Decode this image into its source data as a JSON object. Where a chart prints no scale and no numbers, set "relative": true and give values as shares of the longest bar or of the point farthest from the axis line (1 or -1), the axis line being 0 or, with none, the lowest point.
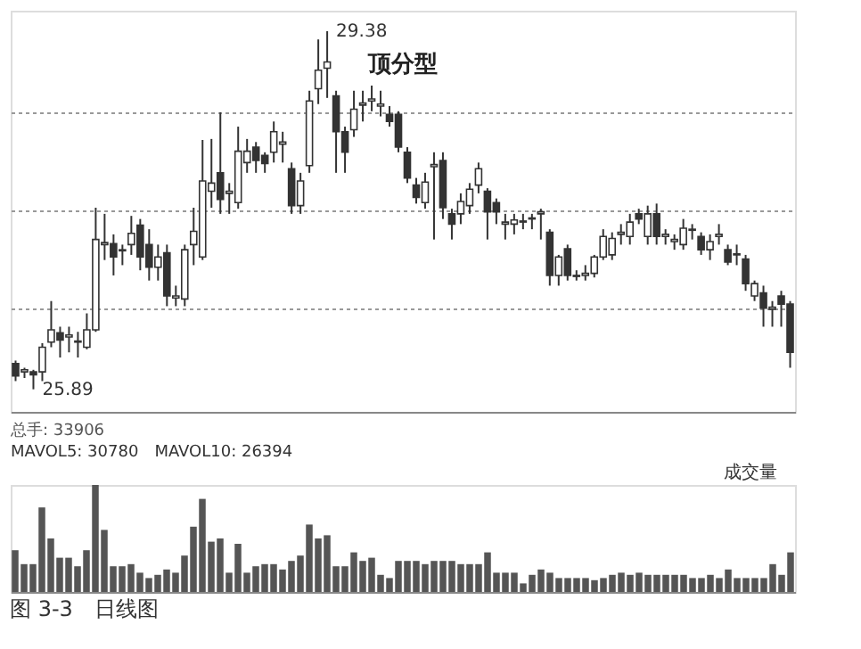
{
  "chart_data": [
    {
      "type": "candlestick",
      "categories": [
        null,
        null,
        null,
        null,
        null,
        null,
        null,
        null,
        null,
        null,
        null,
        null,
        null,
        null,
        null,
        null,
        null,
        null,
        null,
        null,
        null,
        null,
        null,
        null,
        null,
        null,
        null,
        null,
        null,
        null,
        null,
        null,
        null,
        null,
        null,
        null,
        null,
        null,
        null,
        null,
        null,
        null,
        null,
        null,
        null,
        null,
        null,
        null,
        null,
        null,
        null,
        null,
        null,
        null,
        null,
        null,
        null,
        null,
        null,
        null,
        null,
        null,
        null,
        null,
        null,
        null,
        null,
        null,
        null,
        null,
        null,
        null,
        null,
        null,
        null,
        null,
        null,
        null,
        null,
        null,
        null,
        null,
        null,
        null,
        null,
        null,
        null,
        null
      ],
      "ohlc": [
        [
          26.14,
          26.17,
          25.97,
          26.02
        ],
        [
          26.06,
          26.1,
          26.0,
          26.08
        ],
        [
          26.06,
          26.08,
          25.89,
          26.03
        ],
        [
          26.06,
          26.34,
          25.97,
          26.3
        ],
        [
          26.35,
          26.75,
          26.3,
          26.47
        ],
        [
          26.44,
          26.5,
          26.2,
          26.37
        ],
        [
          26.4,
          26.5,
          26.25,
          26.42
        ],
        [
          26.35,
          26.45,
          26.2,
          26.36
        ],
        [
          26.3,
          26.63,
          26.28,
          26.47
        ],
        [
          26.47,
          27.66,
          26.45,
          27.35
        ],
        [
          27.3,
          27.6,
          27.15,
          27.32
        ],
        [
          27.31,
          27.4,
          27.0,
          27.18
        ],
        [
          27.24,
          27.3,
          27.1,
          27.25
        ],
        [
          27.3,
          27.58,
          27.2,
          27.41
        ],
        [
          27.49,
          27.55,
          27.05,
          27.18
        ],
        [
          27.3,
          27.45,
          26.95,
          27.08
        ],
        [
          27.08,
          27.3,
          26.95,
          27.18
        ],
        [
          27.22,
          27.3,
          26.7,
          26.8
        ],
        [
          26.78,
          26.9,
          26.7,
          26.8
        ],
        [
          26.77,
          27.3,
          26.7,
          27.25
        ],
        [
          27.3,
          27.66,
          27.1,
          27.43
        ],
        [
          27.18,
          28.32,
          27.15,
          27.92
        ],
        [
          27.82,
          28.33,
          27.66,
          27.9
        ],
        [
          28.0,
          28.59,
          27.6,
          27.74
        ],
        [
          27.8,
          27.9,
          27.6,
          27.82
        ],
        [
          27.71,
          28.45,
          27.65,
          28.21
        ],
        [
          28.1,
          28.33,
          28.0,
          28.21
        ],
        [
          28.25,
          28.3,
          28.0,
          28.12
        ],
        [
          28.17,
          28.2,
          28.0,
          28.09
        ],
        [
          28.2,
          28.5,
          28.1,
          28.4
        ],
        [
          28.28,
          28.4,
          28.1,
          28.3
        ],
        [
          28.04,
          28.1,
          27.6,
          27.68
        ],
        [
          27.68,
          28.0,
          27.6,
          27.92
        ],
        [
          28.07,
          28.8,
          28.0,
          28.7
        ],
        [
          28.82,
          29.3,
          28.67,
          29.0
        ],
        [
          29.02,
          29.38,
          28.73,
          29.08
        ],
        [
          28.75,
          28.8,
          28.0,
          28.4
        ],
        [
          28.4,
          28.45,
          28.0,
          28.2
        ],
        [
          28.42,
          28.8,
          28.35,
          28.62
        ],
        [
          28.66,
          28.8,
          28.5,
          28.68
        ],
        [
          28.7,
          28.85,
          28.6,
          28.72
        ],
        [
          28.65,
          28.8,
          28.55,
          28.67
        ],
        [
          28.57,
          28.65,
          28.45,
          28.5
        ],
        [
          28.57,
          28.6,
          28.2,
          28.25
        ],
        [
          28.2,
          28.25,
          27.9,
          27.95
        ],
        [
          27.88,
          27.95,
          27.7,
          27.76
        ],
        [
          27.71,
          28.0,
          27.65,
          27.91
        ],
        [
          28.06,
          28.2,
          27.35,
          28.08
        ],
        [
          28.12,
          28.2,
          27.55,
          27.66
        ],
        [
          27.6,
          27.65,
          27.35,
          27.5
        ],
        [
          27.6,
          27.8,
          27.5,
          27.72
        ],
        [
          27.68,
          27.9,
          27.6,
          27.84
        ],
        [
          27.88,
          28.1,
          27.8,
          28.04
        ],
        [
          27.82,
          27.85,
          27.35,
          27.62
        ],
        [
          27.71,
          27.75,
          27.5,
          27.62
        ],
        [
          27.5,
          27.6,
          27.35,
          27.52
        ],
        [
          27.5,
          27.6,
          27.4,
          27.54
        ],
        [
          27.52,
          27.6,
          27.45,
          27.53
        ],
        [
          27.55,
          27.6,
          27.45,
          27.56
        ],
        [
          27.6,
          27.65,
          27.35,
          27.62
        ],
        [
          27.42,
          27.45,
          26.9,
          27.0
        ],
        [
          27.0,
          27.2,
          26.9,
          27.18
        ],
        [
          27.26,
          27.3,
          26.95,
          27.0
        ],
        [
          26.99,
          27.05,
          26.95,
          27.0
        ],
        [
          27.0,
          27.1,
          26.95,
          27.02
        ],
        [
          27.02,
          27.2,
          26.98,
          27.18
        ],
        [
          27.18,
          27.45,
          27.15,
          27.38
        ],
        [
          27.2,
          27.42,
          27.15,
          27.36
        ],
        [
          27.4,
          27.5,
          27.3,
          27.42
        ],
        [
          27.38,
          27.6,
          27.3,
          27.52
        ],
        [
          27.6,
          27.65,
          27.5,
          27.55
        ],
        [
          27.38,
          27.68,
          27.3,
          27.6
        ],
        [
          27.6,
          27.7,
          27.3,
          27.38
        ],
        [
          27.38,
          27.45,
          27.3,
          27.4
        ],
        [
          27.33,
          27.4,
          27.25,
          27.35
        ],
        [
          27.3,
          27.55,
          27.25,
          27.46
        ],
        [
          27.44,
          27.5,
          27.35,
          27.45
        ],
        [
          27.38,
          27.42,
          27.2,
          27.25
        ],
        [
          27.25,
          27.4,
          27.15,
          27.33
        ],
        [
          27.38,
          27.5,
          27.3,
          27.4
        ],
        [
          27.25,
          27.3,
          27.1,
          27.13
        ],
        [
          27.2,
          27.3,
          27.1,
          27.21
        ],
        [
          27.16,
          27.2,
          26.85,
          26.92
        ],
        [
          26.8,
          26.95,
          26.75,
          26.92
        ],
        [
          26.83,
          26.9,
          26.5,
          26.68
        ],
        [
          26.67,
          26.75,
          26.5,
          26.69
        ],
        [
          26.8,
          26.85,
          26.5,
          26.72
        ],
        [
          26.72,
          26.75,
          26.1,
          26.25
        ]
      ],
      "color": "#333333",
      "ylim": [
        25.67,
        29.58
      ],
      "yticks": [
        {
          "value": 26.67,
          "label": null
        },
        {
          "value": 27.63,
          "label": null
        },
        {
          "value": 28.59,
          "label": null
        }
      ],
      "grid": "y",
      "tick_labels": false,
      "annotations": [
        "29.38",
        "25.89",
        "顶分型",
        "图 3-3　日线图"
      ]
    },
    {
      "type": "bar",
      "relative": true,
      "color": "#555555",
      "tick_labels": false,
      "title": "总手: 33906",
      "subtitle": "MAVOL5: 30780　MAVOL10: 26394",
      "annotations": [
        "成交量"
      ],
      "categories": [
        null,
        null,
        null,
        null,
        null,
        null,
        null,
        null,
        null,
        null,
        null,
        null,
        null,
        null,
        null,
        null,
        null,
        null,
        null,
        null,
        null,
        null,
        null,
        null,
        null,
        null,
        null,
        null,
        null,
        null,
        null,
        null,
        null,
        null,
        null,
        null,
        null,
        null,
        null,
        null,
        null,
        null,
        null,
        null,
        null,
        null,
        null,
        null,
        null,
        null,
        null,
        null,
        null,
        null,
        null,
        null,
        null,
        null,
        null,
        null,
        null,
        null,
        null,
        null,
        null,
        null,
        null,
        null,
        null,
        null,
        null,
        null,
        null,
        null,
        null,
        null,
        null,
        null,
        null,
        null,
        null,
        null,
        null,
        null,
        null,
        null,
        null,
        null
      ],
      "values": [
        0.39,
        0.26,
        0.26,
        0.79,
        0.5,
        0.32,
        0.32,
        0.24,
        0.39,
        1,
        0.58,
        0.24,
        0.24,
        0.26,
        0.18,
        0.13,
        0.16,
        0.21,
        0.18,
        0.34,
        0.61,
        0.87,
        0.47,
        0.5,
        0.18,
        0.45,
        0.18,
        0.24,
        0.26,
        0.26,
        0.21,
        0.29,
        0.34,
        0.63,
        0.5,
        0.53,
        0.24,
        0.24,
        0.37,
        0.29,
        0.32,
        0.16,
        0.13,
        0.29,
        0.29,
        0.29,
        0.26,
        0.29,
        0.29,
        0.29,
        0.26,
        0.26,
        0.26,
        0.37,
        0.18,
        0.18,
        0.18,
        0.08,
        0.16,
        0.21,
        0.18,
        0.13,
        0.13,
        0.13,
        0.13,
        0.11,
        0.13,
        0.16,
        0.18,
        0.16,
        0.18,
        0.16,
        0.16,
        0.16,
        0.16,
        0.16,
        0.13,
        0.13,
        0.16,
        0.13,
        0.21,
        0.13,
        0.13,
        0.13,
        0.13,
        0.26,
        0.16,
        0.37
      ]
    }
  ]
}
